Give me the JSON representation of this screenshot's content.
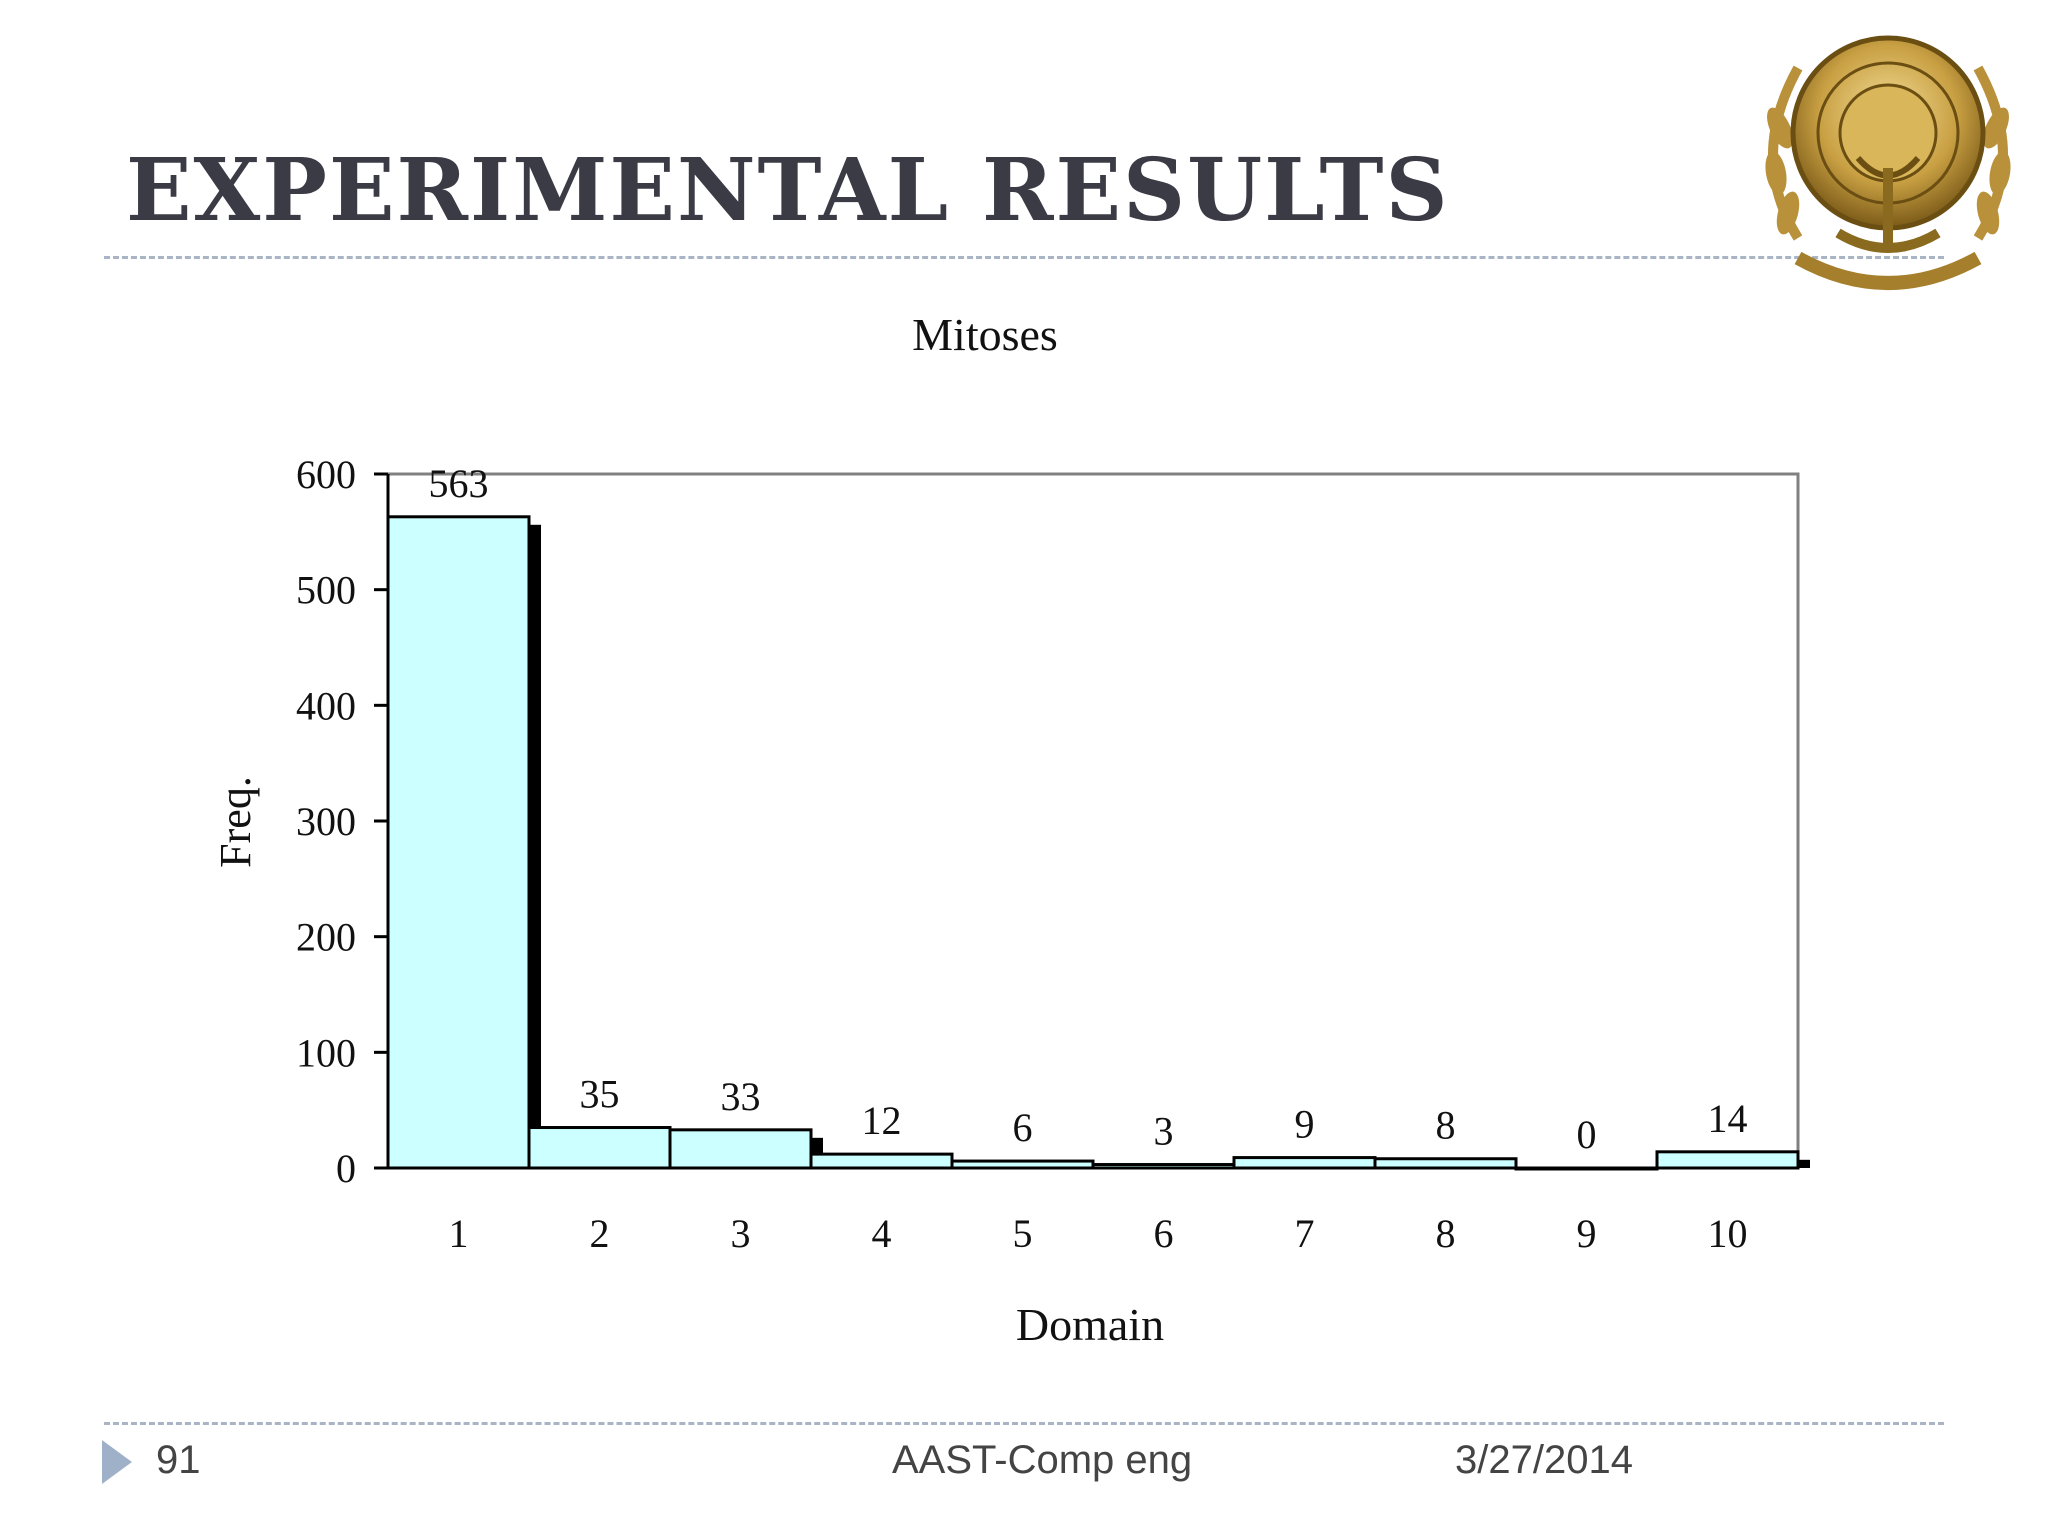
{
  "slide": {
    "title": "EXPERIMENTAL RESULTS",
    "page_number": "91",
    "footer_center": "AAST-Comp eng",
    "footer_date": "3/27/2014",
    "logo_icon": "aast-emblem-logo",
    "accent_color": "#9fb1c9"
  },
  "chart_data": {
    "type": "bar",
    "title": "Mitoses",
    "xlabel": "Domain",
    "ylabel": "Freq.",
    "categories": [
      "1",
      "2",
      "3",
      "4",
      "5",
      "6",
      "7",
      "8",
      "9",
      "10"
    ],
    "values": [
      563,
      35,
      33,
      12,
      6,
      3,
      9,
      8,
      0,
      14
    ],
    "data_labels": [
      "563",
      "35",
      "33",
      "12",
      "6",
      "3",
      "9",
      "8",
      "0",
      "14"
    ],
    "ylim": [
      0,
      600
    ],
    "yticks": [
      0,
      100,
      200,
      300,
      400,
      500,
      600
    ],
    "grid": false,
    "legend": "none",
    "bar_color": "#ccffff",
    "shadow_color": "#000000"
  }
}
